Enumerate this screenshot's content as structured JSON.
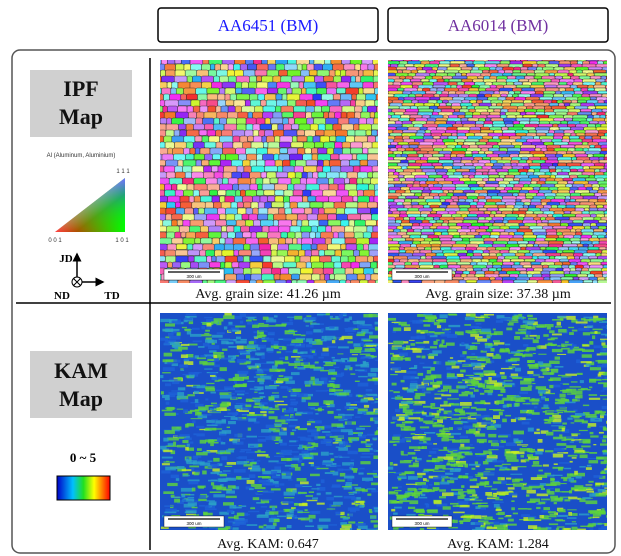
{
  "columns": [
    "AA6451 (BM)",
    "AA6014 (BM)"
  ],
  "rows": [
    {
      "label_lines": [
        "IPF",
        "Map"
      ],
      "legend_title": "Al (Aluminum, Aluminium)",
      "triangle": {
        "top": "1 1 1",
        "left": "0 0 1",
        "right": "1 0 1"
      },
      "axes": {
        "up": "JD",
        "out": "ND",
        "right": "TD"
      },
      "captions": [
        "Avg. grain size: 41.26 µm",
        "Avg. grain size: 37.38 µm"
      ],
      "scale_bar": "300 um"
    },
    {
      "label_lines": [
        "KAM",
        "Map"
      ],
      "range": "0 ~ 5",
      "captions": [
        "Avg. KAM: 0.647",
        "Avg. KAM: 1.284"
      ],
      "scale_bar": "300 um"
    }
  ]
}
